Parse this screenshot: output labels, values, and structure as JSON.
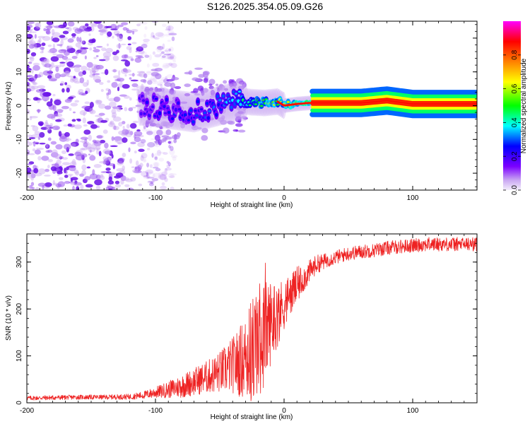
{
  "title": "S126.2025.354.05.09.G26",
  "chart_data": [
    {
      "type": "heatmap",
      "title": "S126.2025.354.05.09.G26",
      "xlabel": "Height of straight line (km)",
      "ylabel": "Frequency (Hz)",
      "xlim": [
        -200,
        150
      ],
      "ylim": [
        -25,
        25
      ],
      "x_ticks": [
        -200,
        -100,
        0,
        100
      ],
      "x_tick_labels": [
        "-200",
        "-100",
        "0",
        "100"
      ],
      "y_ticks": [
        -20,
        -10,
        0,
        10,
        20
      ],
      "y_tick_labels": [
        "-20",
        "-10",
        "0",
        "10",
        "20"
      ],
      "colorbar": {
        "label": "Normalized spectral amplitude",
        "range": [
          0,
          1
        ],
        "ticks": [
          0,
          0.2,
          0.4,
          0.6,
          0.8
        ],
        "tick_labels": [
          "0.0",
          "0.2",
          "0.4",
          "0.6",
          "0.8"
        ],
        "colormap": [
          "#e8d8f8",
          "#7b00ff",
          "#0000ff",
          "#00ffff",
          "#00ff00",
          "#ffff00",
          "#ff8000",
          "#ff0000",
          "#ff00ff"
        ]
      },
      "ridge": {
        "x": [
          -110,
          -90,
          -70,
          -50,
          -35,
          -25,
          -15,
          -5,
          0,
          10,
          20,
          40,
          60,
          80,
          90,
          100,
          120,
          150
        ],
        "y": [
          0,
          -1,
          -2,
          0,
          1.5,
          1,
          0.8,
          1.2,
          0,
          0.5,
          0.8,
          0.8,
          0.8,
          1.5,
          1.0,
          0.5,
          0.5,
          0.5
        ],
        "amplitude": [
          0.2,
          0.25,
          0.25,
          0.3,
          0.4,
          0.5,
          0.6,
          0.6,
          0.65,
          0.7,
          0.8,
          0.85,
          0.9,
          0.85,
          0.85,
          0.8,
          0.8,
          0.75
        ]
      },
      "noise_region_x": [
        -200,
        -110
      ]
    },
    {
      "type": "line",
      "xlabel": "Height of straight line (km)",
      "ylabel": "SNR (10 * v/v)",
      "xlim": [
        -200,
        150
      ],
      "ylim": [
        0,
        360
      ],
      "x_ticks": [
        -200,
        -100,
        0,
        100
      ],
      "x_tick_labels": [
        "-200",
        "-100",
        "0",
        "100"
      ],
      "y_ticks": [
        0,
        100,
        200,
        300
      ],
      "y_tick_labels": [
        "0",
        "100",
        "200",
        "300"
      ],
      "series": [
        {
          "name": "SNR",
          "color": "#ee2222",
          "x": [
            -200,
            -180,
            -160,
            -140,
            -120,
            -110,
            -100,
            -90,
            -80,
            -70,
            -60,
            -50,
            -40,
            -30,
            -25,
            -20,
            -15,
            -10,
            -5,
            0,
            5,
            10,
            15,
            20,
            25,
            30,
            35,
            40,
            50,
            60,
            70,
            80,
            90,
            100,
            110,
            120,
            130,
            140,
            150
          ],
          "values": [
            10,
            11,
            12,
            12,
            13,
            16,
            22,
            28,
            35,
            45,
            55,
            65,
            80,
            95,
            110,
            130,
            150,
            175,
            190,
            210,
            230,
            250,
            265,
            280,
            295,
            300,
            305,
            310,
            318,
            322,
            325,
            330,
            333,
            335,
            338,
            338,
            338,
            338,
            338
          ],
          "noise_amplitude": [
            5,
            5,
            5,
            5,
            6,
            8,
            12,
            18,
            25,
            30,
            35,
            45,
            60,
            90,
            120,
            130,
            110,
            90,
            70,
            55,
            45,
            40,
            30,
            25,
            20,
            18,
            15,
            15,
            15,
            15,
            15,
            15,
            15,
            15,
            15,
            15,
            15,
            15,
            15
          ]
        }
      ]
    }
  ]
}
